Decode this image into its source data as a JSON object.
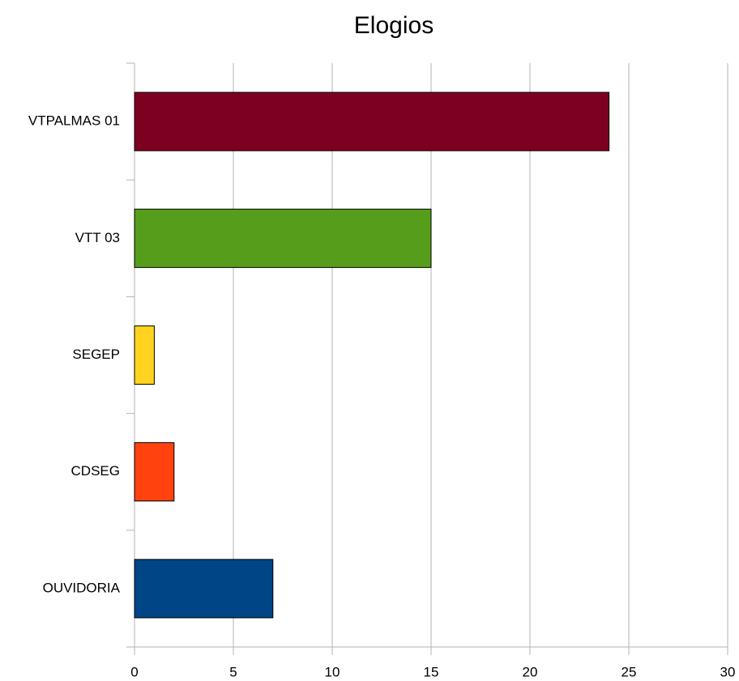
{
  "chart_data": {
    "type": "bar",
    "orientation": "horizontal",
    "title": "Elogios",
    "categories": [
      "VTPALMAS 01",
      "VTT 03",
      "SEGEP",
      "CDSEG",
      "OUVIDORIA"
    ],
    "values": [
      24,
      15,
      1,
      2,
      7
    ],
    "colors": [
      "#7e0021",
      "#579d1c",
      "#ffd320",
      "#ff420e",
      "#004586"
    ],
    "xlim": [
      0,
      30
    ],
    "xticks": [
      0,
      5,
      10,
      15,
      20,
      25,
      30
    ],
    "grid": true
  }
}
